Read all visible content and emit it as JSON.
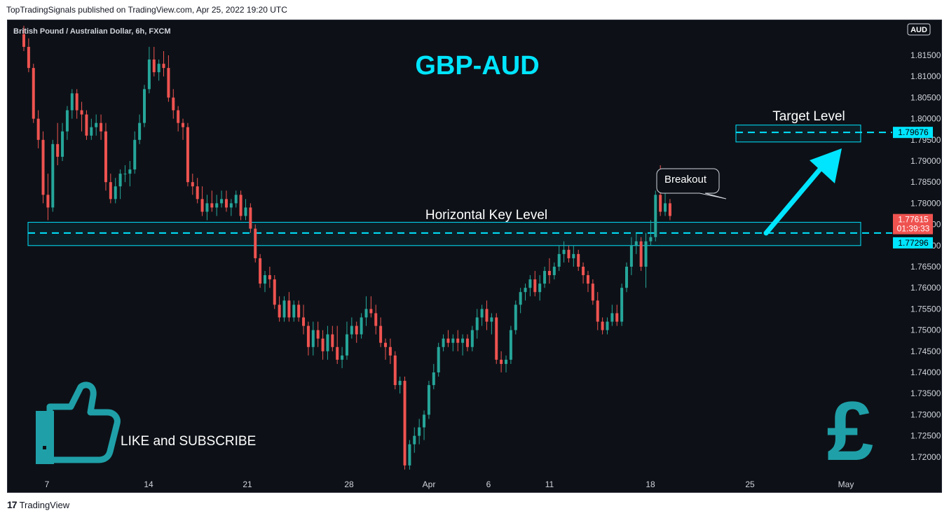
{
  "header": {
    "published": "TopTradingSignals published on TradingView.com, Apr 25, 2022 19:20 UTC"
  },
  "footer": {
    "brand": "TradingView",
    "logo_glyph": "17"
  },
  "chart_data": {
    "type": "candlestick",
    "symbol": "British Pound / Australian Dollar, 6h, FXCM",
    "title": "GBP-AUD",
    "currency_label": "AUD",
    "x_ticks": [
      "7",
      "14",
      "21",
      "28",
      "Apr",
      "6",
      "11",
      "18",
      "25",
      "May"
    ],
    "y_ticks": [
      "1.81500",
      "1.81000",
      "1.80500",
      "1.80000",
      "1.79500",
      "1.79000",
      "1.78500",
      "1.78000",
      "1.77500",
      "1.77000",
      "1.76500",
      "1.76000",
      "1.75500",
      "1.75000",
      "1.74500",
      "1.74000",
      "1.73500",
      "1.73000",
      "1.72500",
      "1.72000"
    ],
    "ylim": [
      1.7175,
      1.8215
    ],
    "candles": [
      [
        1.82,
        1.822,
        1.816,
        1.817
      ],
      [
        1.817,
        1.819,
        1.811,
        1.812
      ],
      [
        1.812,
        1.813,
        1.799,
        1.8
      ],
      [
        1.8,
        1.802,
        1.793,
        1.795
      ],
      [
        1.795,
        1.797,
        1.78,
        1.782
      ],
      [
        1.782,
        1.787,
        1.776,
        1.779
      ],
      [
        1.779,
        1.795,
        1.778,
        1.794
      ],
      [
        1.794,
        1.799,
        1.789,
        1.791
      ],
      [
        1.791,
        1.799,
        1.79,
        1.797
      ],
      [
        1.797,
        1.803,
        1.795,
        1.802
      ],
      [
        1.802,
        1.807,
        1.8,
        1.806
      ],
      [
        1.806,
        1.807,
        1.8,
        1.802
      ],
      [
        1.802,
        1.804,
        1.797,
        1.801
      ],
      [
        1.801,
        1.802,
        1.795,
        1.796
      ],
      [
        1.796,
        1.8,
        1.795,
        1.798
      ],
      [
        1.798,
        1.801,
        1.796,
        1.799
      ],
      [
        1.799,
        1.801,
        1.795,
        1.797
      ],
      [
        1.797,
        1.799,
        1.783,
        1.785
      ],
      [
        1.785,
        1.787,
        1.78,
        1.781
      ],
      [
        1.781,
        1.786,
        1.78,
        1.784
      ],
      [
        1.784,
        1.788,
        1.781,
        1.787
      ],
      [
        1.787,
        1.789,
        1.785,
        1.787
      ],
      [
        1.787,
        1.79,
        1.784,
        1.788
      ],
      [
        1.788,
        1.797,
        1.787,
        1.795
      ],
      [
        1.795,
        1.801,
        1.794,
        1.799
      ],
      [
        1.799,
        1.808,
        1.798,
        1.807
      ],
      [
        1.807,
        1.817,
        1.806,
        1.814
      ],
      [
        1.814,
        1.817,
        1.81,
        1.811
      ],
      [
        1.811,
        1.814,
        1.809,
        1.813
      ],
      [
        1.813,
        1.816,
        1.81,
        1.812
      ],
      [
        1.812,
        1.815,
        1.804,
        1.805
      ],
      [
        1.805,
        1.807,
        1.8,
        1.802
      ],
      [
        1.802,
        1.803,
        1.797,
        1.799
      ],
      [
        1.799,
        1.8,
        1.795,
        1.798
      ],
      [
        1.798,
        1.799,
        1.784,
        1.785
      ],
      [
        1.785,
        1.787,
        1.782,
        1.784
      ],
      [
        1.784,
        1.786,
        1.78,
        1.781
      ],
      [
        1.781,
        1.784,
        1.777,
        1.778
      ],
      [
        1.778,
        1.782,
        1.776,
        1.78
      ],
      [
        1.78,
        1.783,
        1.778,
        1.779
      ],
      [
        1.779,
        1.782,
        1.777,
        1.78
      ],
      [
        1.78,
        1.783,
        1.779,
        1.781
      ],
      [
        1.781,
        1.783,
        1.778,
        1.779
      ],
      [
        1.779,
        1.781,
        1.777,
        1.78
      ],
      [
        1.78,
        1.783,
        1.779,
        1.782
      ],
      [
        1.782,
        1.783,
        1.776,
        1.777
      ],
      [
        1.777,
        1.781,
        1.776,
        1.779
      ],
      [
        1.779,
        1.78,
        1.773,
        1.774
      ],
      [
        1.774,
        1.775,
        1.766,
        1.767
      ],
      [
        1.767,
        1.768,
        1.76,
        1.761
      ],
      [
        1.761,
        1.764,
        1.759,
        1.763
      ],
      [
        1.763,
        1.765,
        1.76,
        1.762
      ],
      [
        1.762,
        1.763,
        1.755,
        1.756
      ],
      [
        1.756,
        1.758,
        1.752,
        1.753
      ],
      [
        1.753,
        1.758,
        1.752,
        1.757
      ],
      [
        1.757,
        1.759,
        1.752,
        1.753
      ],
      [
        1.753,
        1.757,
        1.752,
        1.756
      ],
      [
        1.756,
        1.757,
        1.752,
        1.753
      ],
      [
        1.753,
        1.756,
        1.749,
        1.751
      ],
      [
        1.751,
        1.752,
        1.744,
        1.746
      ],
      [
        1.746,
        1.752,
        1.744,
        1.75
      ],
      [
        1.75,
        1.752,
        1.746,
        1.748
      ],
      [
        1.748,
        1.75,
        1.743,
        1.745
      ],
      [
        1.745,
        1.751,
        1.743,
        1.749
      ],
      [
        1.749,
        1.751,
        1.745,
        1.746
      ],
      [
        1.746,
        1.751,
        1.742,
        1.743
      ],
      [
        1.743,
        1.746,
        1.741,
        1.744
      ],
      [
        1.744,
        1.752,
        1.743,
        1.749
      ],
      [
        1.749,
        1.753,
        1.748,
        1.751
      ],
      [
        1.751,
        1.752,
        1.747,
        1.749
      ],
      [
        1.749,
        1.754,
        1.748,
        1.753
      ],
      [
        1.753,
        1.758,
        1.751,
        1.755
      ],
      [
        1.755,
        1.758,
        1.753,
        1.754
      ],
      [
        1.754,
        1.756,
        1.749,
        1.751
      ],
      [
        1.751,
        1.753,
        1.746,
        1.747
      ],
      [
        1.747,
        1.748,
        1.743,
        1.746
      ],
      [
        1.746,
        1.748,
        1.742,
        1.744
      ],
      [
        1.744,
        1.745,
        1.736,
        1.737
      ],
      [
        1.737,
        1.739,
        1.735,
        1.738
      ],
      [
        1.738,
        1.739,
        1.717,
        1.718
      ],
      [
        1.718,
        1.724,
        1.717,
        1.723
      ],
      [
        1.723,
        1.727,
        1.721,
        1.725
      ],
      [
        1.725,
        1.729,
        1.723,
        1.727
      ],
      [
        1.727,
        1.731,
        1.724,
        1.73
      ],
      [
        1.73,
        1.738,
        1.729,
        1.737
      ],
      [
        1.737,
        1.742,
        1.736,
        1.74
      ],
      [
        1.74,
        1.747,
        1.739,
        1.746
      ],
      [
        1.746,
        1.749,
        1.745,
        1.748
      ],
      [
        1.748,
        1.75,
        1.746,
        1.747
      ],
      [
        1.747,
        1.749,
        1.745,
        1.748
      ],
      [
        1.748,
        1.75,
        1.745,
        1.747
      ],
      [
        1.747,
        1.749,
        1.744,
        1.748
      ],
      [
        1.748,
        1.749,
        1.745,
        1.746
      ],
      [
        1.746,
        1.751,
        1.745,
        1.75
      ],
      [
        1.75,
        1.755,
        1.748,
        1.753
      ],
      [
        1.753,
        1.756,
        1.751,
        1.755
      ],
      [
        1.755,
        1.757,
        1.75,
        1.752
      ],
      [
        1.752,
        1.754,
        1.749,
        1.753
      ],
      [
        1.753,
        1.754,
        1.742,
        1.743
      ],
      [
        1.743,
        1.745,
        1.74,
        1.742
      ],
      [
        1.742,
        1.744,
        1.74,
        1.743
      ],
      [
        1.743,
        1.751,
        1.742,
        1.75
      ],
      [
        1.75,
        1.757,
        1.749,
        1.756
      ],
      [
        1.756,
        1.76,
        1.754,
        1.759
      ],
      [
        1.759,
        1.761,
        1.757,
        1.76
      ],
      [
        1.76,
        1.763,
        1.758,
        1.762
      ],
      [
        1.762,
        1.764,
        1.758,
        1.759
      ],
      [
        1.759,
        1.763,
        1.757,
        1.761
      ],
      [
        1.761,
        1.765,
        1.76,
        1.764
      ],
      [
        1.764,
        1.767,
        1.761,
        1.763
      ],
      [
        1.763,
        1.766,
        1.762,
        1.765
      ],
      [
        1.765,
        1.77,
        1.764,
        1.768
      ],
      [
        1.768,
        1.771,
        1.766,
        1.769
      ],
      [
        1.769,
        1.77,
        1.766,
        1.767
      ],
      [
        1.767,
        1.77,
        1.765,
        1.768
      ],
      [
        1.768,
        1.769,
        1.764,
        1.765
      ],
      [
        1.765,
        1.766,
        1.761,
        1.763
      ],
      [
        1.763,
        1.764,
        1.759,
        1.761
      ],
      [
        1.761,
        1.762,
        1.756,
        1.757
      ],
      [
        1.757,
        1.759,
        1.75,
        1.752
      ],
      [
        1.752,
        1.753,
        1.749,
        1.75
      ],
      [
        1.75,
        1.753,
        1.749,
        1.752
      ],
      [
        1.752,
        1.756,
        1.751,
        1.754
      ],
      [
        1.754,
        1.756,
        1.751,
        1.752
      ],
      [
        1.752,
        1.761,
        1.751,
        1.76
      ],
      [
        1.76,
        1.766,
        1.759,
        1.765
      ],
      [
        1.765,
        1.772,
        1.763,
        1.77
      ],
      [
        1.77,
        1.773,
        1.768,
        1.771
      ],
      [
        1.771,
        1.772,
        1.764,
        1.765
      ],
      [
        1.765,
        1.773,
        1.76,
        1.771
      ],
      [
        1.771,
        1.776,
        1.77,
        1.772
      ],
      [
        1.772,
        1.783,
        1.771,
        1.782
      ],
      [
        1.782,
        1.789,
        1.777,
        1.778
      ],
      [
        1.778,
        1.784,
        1.777,
        1.78
      ],
      [
        1.78,
        1.781,
        1.776,
        1.777
      ]
    ],
    "key_level": {
      "label": "Horizontal Key Level",
      "value": 1.77296,
      "value_label": "1.77296",
      "zone": [
        1.77,
        1.7755
      ]
    },
    "target_level": {
      "label": "Target Level",
      "value": 1.79676,
      "value_label": "1.79676",
      "zone": [
        1.7945,
        1.7985
      ]
    },
    "last_price": {
      "value": 1.77615,
      "value_label": "1.77615",
      "countdown": "01:39:33"
    },
    "annotations": {
      "breakout": "Breakout",
      "cta": "LIKE and SUBSCRIBE"
    },
    "colors": {
      "background": "#0d1117",
      "up": "#26a69a",
      "down": "#ef5350",
      "accent": "#00e5ff",
      "icon": "#1fa0a8",
      "text": "#d1d4dc"
    }
  }
}
